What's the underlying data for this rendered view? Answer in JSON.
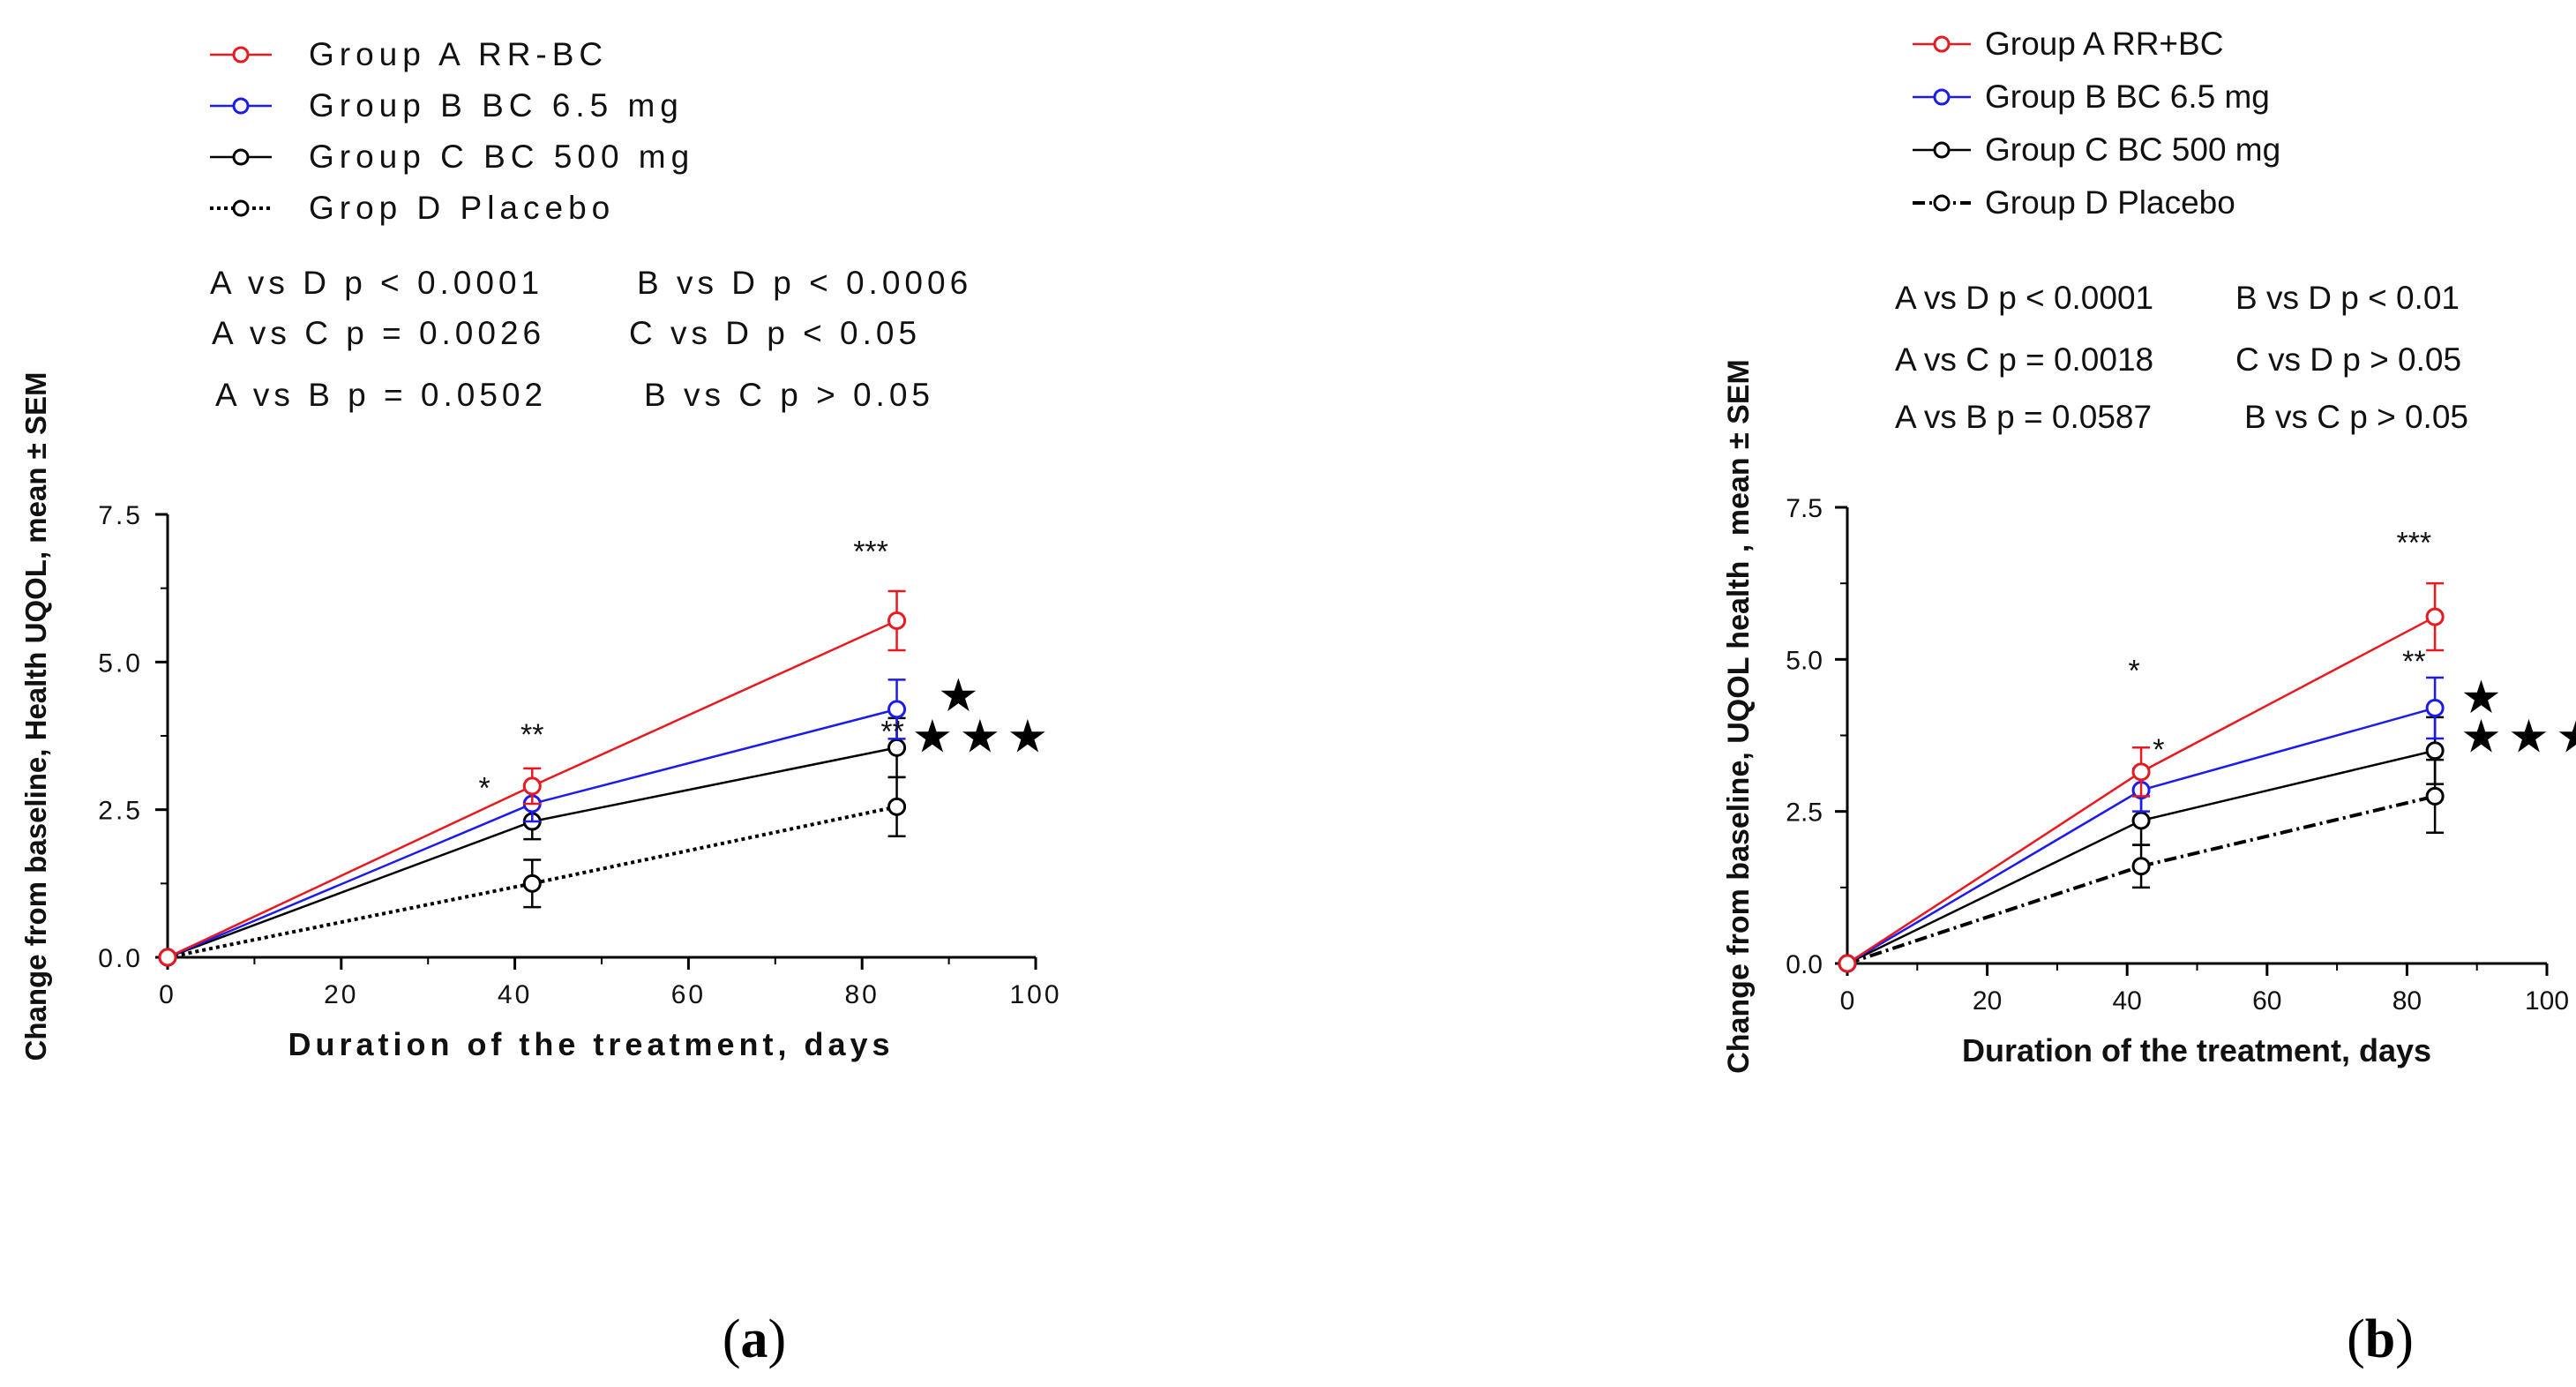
{
  "chart_data": [
    {
      "type": "line",
      "panel": "a",
      "caption": {
        "open": "(",
        "letter": "a",
        "close": ")"
      },
      "xlabel": "Duration of the treatment, days",
      "ylabel": "Change from baseline, Health UQOL, mean ± SEM",
      "xlim": [
        0,
        100
      ],
      "ylim": [
        0,
        7.5
      ],
      "xticks": [
        "0",
        "20",
        "40",
        "60",
        "80",
        "100"
      ],
      "yticks": [
        "0.0",
        "2.5",
        "5.0",
        "7.5"
      ],
      "x": [
        0,
        42,
        84
      ],
      "series": [
        {
          "name": "Group A RR-BC",
          "color": "#e8191f",
          "marker": "circle",
          "dash": "none",
          "values": [
            0,
            2.9,
            5.7
          ],
          "err": [
            0,
            0.3,
            0.5
          ]
        },
        {
          "name": "Group B BC 6.5 mg",
          "color": "#1b1bf0",
          "marker": "circle",
          "dash": "none",
          "values": [
            0,
            2.6,
            4.2
          ],
          "err": [
            0,
            0.3,
            0.5
          ]
        },
        {
          "name": "Group C BC 500 mg",
          "color": "#000000",
          "marker": "circle",
          "dash": "none",
          "values": [
            0,
            2.3,
            3.55
          ],
          "err": [
            0,
            0.3,
            0.5
          ]
        },
        {
          "name": "Grop D Placebo",
          "color": "#000000",
          "marker": "circle",
          "dash": "dotted",
          "values": [
            0,
            1.25,
            2.55
          ],
          "err": [
            0,
            0.4,
            0.5
          ]
        }
      ],
      "stats": [
        [
          "A vs D p < 0.0001",
          "B vs D p < 0.0006"
        ],
        [
          "A vs C p = 0.0026",
          "C vs D p < 0.05"
        ],
        [
          "A vs B p = 0.0502",
          "B vs C p > 0.05"
        ]
      ],
      "annotations": [
        {
          "text": "**",
          "x": 42,
          "y": 3.6
        },
        {
          "text": "*",
          "x": 36.5,
          "y": 2.7
        },
        {
          "text": "***",
          "x": 81,
          "y": 6.7
        },
        {
          "text": "**",
          "x": 83.5,
          "y": 3.65
        },
        {
          "text": "★",
          "x": 89,
          "y": 4.2,
          "big": true
        },
        {
          "text": "★ ★ ★",
          "x": 86,
          "y": 3.5,
          "big": true
        }
      ]
    },
    {
      "type": "line",
      "panel": "b",
      "caption": {
        "open": "(",
        "letter": "b",
        "close": ")"
      },
      "xlabel": "Duration of the treatment, days",
      "ylabel": "Change from baseline, UQOL health , mean ± SEM",
      "xlim": [
        0,
        100
      ],
      "ylim": [
        0,
        7.5
      ],
      "xticks": [
        "0",
        "20",
        "40",
        "60",
        "80",
        "100"
      ],
      "yticks": [
        "0.0",
        "2.5",
        "5.0",
        "7.5"
      ],
      "x": [
        0,
        42,
        84
      ],
      "series": [
        {
          "name": "Group A RR+BC",
          "color": "#e8191f",
          "marker": "circle",
          "dash": "none",
          "values": [
            0,
            3.15,
            5.7
          ],
          "err": [
            0,
            0.4,
            0.55
          ]
        },
        {
          "name": "Group B BC 6.5 mg",
          "color": "#1b1bf0",
          "marker": "circle",
          "dash": "none",
          "values": [
            0,
            2.85,
            4.2
          ],
          "err": [
            0,
            0.35,
            0.5
          ]
        },
        {
          "name": "Group C BC 500 mg",
          "color": "#000000",
          "marker": "circle",
          "dash": "none",
          "values": [
            0,
            2.35,
            3.5
          ],
          "err": [
            0,
            0.4,
            0.55
          ]
        },
        {
          "name": "Group D Placebo",
          "color": "#000000",
          "marker": "circle",
          "dash": "dashdot",
          "values": [
            0,
            1.6,
            2.75
          ],
          "err": [
            0,
            0.35,
            0.6
          ]
        }
      ],
      "stats": [
        [
          "A vs D p < 0.0001",
          "B vs D p < 0.01"
        ],
        [
          "A vs C p = 0.0018",
          "C vs D p > 0.05"
        ],
        [
          "A vs B p = 0.0587",
          "B vs C p > 0.05"
        ]
      ],
      "annotations": [
        {
          "text": "*",
          "x": 41,
          "y": 4.65
        },
        {
          "text": "*",
          "x": 44.5,
          "y": 3.35
        },
        {
          "text": "***",
          "x": 81,
          "y": 6.75
        },
        {
          "text": "**",
          "x": 81,
          "y": 4.8
        },
        {
          "text": "★",
          "x": 88,
          "y": 4.15,
          "big": true
        },
        {
          "text": "★ ★ ★",
          "x": 88,
          "y": 3.5,
          "big": true
        }
      ]
    }
  ]
}
